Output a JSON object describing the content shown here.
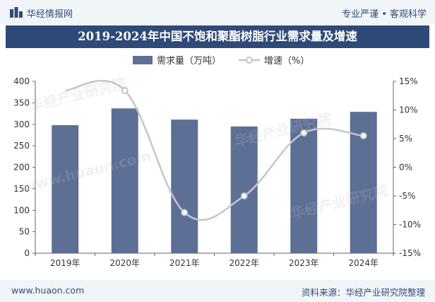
{
  "header": {
    "brand": "华经情报网",
    "slogan": "专业严谨 • 客观科学"
  },
  "title": "2019-2024年中国不饱和聚酯树脂行业需求量及增速",
  "footer": {
    "website": "www.huaon.com",
    "source": "资料来源：华经产业研究院整理"
  },
  "watermarks": [
    "华经产业研究院",
    "www.huaon.com"
  ],
  "colors": {
    "brand": "#2f4a78",
    "bar": "#5e6f95",
    "line": "#c4c6ca",
    "marker": "#ffffff"
  },
  "chart_data": {
    "type": "bar",
    "categories": [
      "2019年",
      "2020年",
      "2021年",
      "2022年",
      "2023年",
      "2024年"
    ],
    "series": [
      {
        "name": "需求量（万吨）",
        "type": "bar",
        "axis": "left",
        "values": [
          298,
          337,
          311,
          295,
          313,
          329
        ]
      },
      {
        "name": "增速（%）",
        "type": "line",
        "axis": "right",
        "values": [
          13.4,
          13.4,
          -7.9,
          -5.0,
          6.0,
          5.5
        ]
      }
    ],
    "y_left": {
      "min": 0,
      "max": 400,
      "ticks": [
        "0",
        "50",
        "100",
        "150",
        "200",
        "250",
        "300",
        "350",
        "400"
      ]
    },
    "y_right": {
      "min": -15,
      "max": 15,
      "ticks": [
        "-15%",
        "-10%",
        "-5%",
        "0%",
        "5%",
        "10%",
        "15%"
      ]
    },
    "legend_position": "top",
    "grid": false
  }
}
